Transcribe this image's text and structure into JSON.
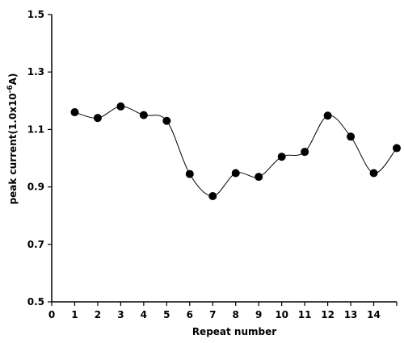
{
  "chart_data": {
    "type": "line",
    "title": "",
    "xlabel": "Repeat number",
    "ylabel_main": "peak current(1.0x10",
    "ylabel_exp": "-6",
    "ylabel_unit": "A)",
    "x_ticks": [
      "0",
      "1",
      "2",
      "3",
      "4",
      "5",
      "6",
      "7",
      "8",
      "9",
      "10",
      "11",
      "12",
      "13",
      "14"
    ],
    "y_ticks": [
      "0.5",
      "0.7",
      "0.9",
      "1.1",
      "1.3",
      "1.5"
    ],
    "xlim": [
      0,
      15
    ],
    "ylim": [
      0.5,
      1.5
    ],
    "grid": false,
    "smooth": true,
    "series": [
      {
        "x": [
          1,
          2,
          3,
          4,
          5,
          6,
          7,
          8,
          9,
          10,
          11,
          12,
          13,
          14,
          15
        ],
        "values": [
          1.16,
          1.14,
          1.18,
          1.15,
          1.13,
          0.945,
          0.868,
          0.948,
          0.935,
          1.005,
          1.022,
          1.148,
          1.075,
          0.948,
          1.035
        ]
      }
    ],
    "colors": {
      "line": "#000000",
      "marker": "#000000"
    }
  }
}
